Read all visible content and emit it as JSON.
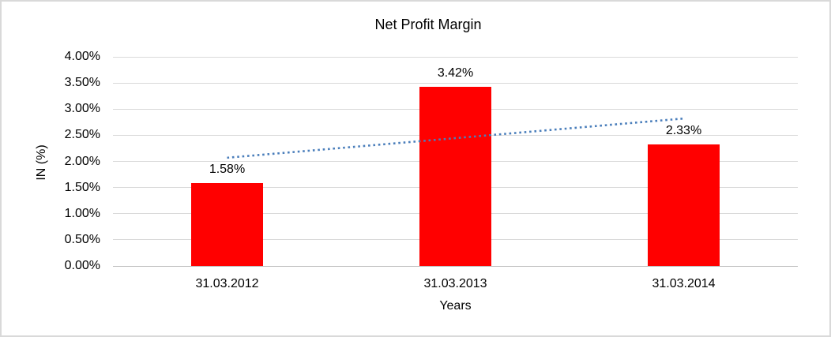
{
  "chart_data": {
    "type": "bar",
    "title": "Net Profit Margin",
    "xlabel": "Years",
    "ylabel": "IN (%)",
    "categories": [
      "31.03.2012",
      "31.03.2013",
      "31.03.2014"
    ],
    "values": [
      1.58,
      3.42,
      2.33
    ],
    "data_labels": [
      "1.58%",
      "3.42%",
      "2.33%"
    ],
    "ylim": [
      0,
      4
    ],
    "ytick_step": 0.5,
    "ytick_labels": [
      "0.00%",
      "0.50%",
      "1.00%",
      "1.50%",
      "2.00%",
      "2.50%",
      "3.00%",
      "3.50%",
      "4.00%"
    ],
    "grid": true,
    "legend": "none",
    "bar_color": "#ff0000",
    "trendline": {
      "type": "linear",
      "style": "dotted",
      "color": "#4a7ebb",
      "start_value": 2.07,
      "end_value": 2.82
    }
  }
}
